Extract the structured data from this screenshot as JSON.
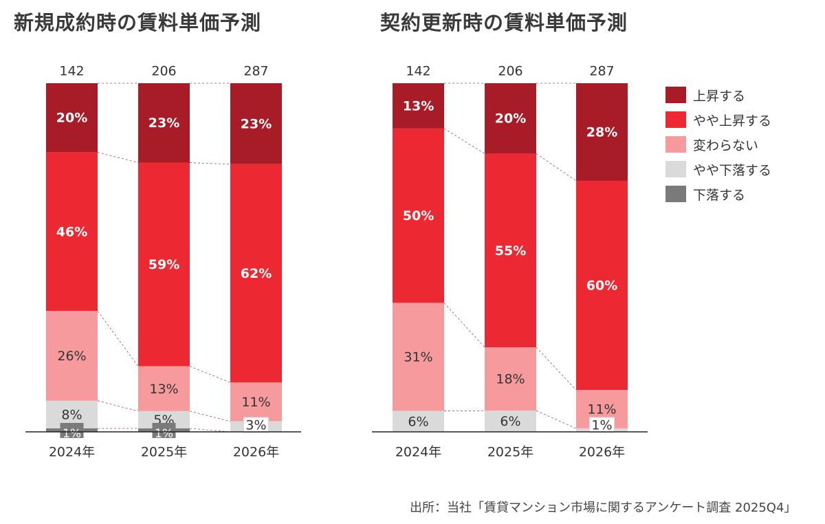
{
  "legend": [
    {
      "label": "上昇する",
      "color": "#A81C27"
    },
    {
      "label": "やや上昇する",
      "color": "#EC2832"
    },
    {
      "label": "変わらない",
      "color": "#F79A9E"
    },
    {
      "label": "やや下落する",
      "color": "#DADADA"
    },
    {
      "label": "下落する",
      "color": "#7A7A7A"
    }
  ],
  "source": "出所：当社「賃貸マンション市場に関するアンケート調査 2025Q4」",
  "chart_data": [
    {
      "type": "bar",
      "stacked": true,
      "percent": true,
      "title": "新規成約時の賃料単価予測",
      "categories": [
        "2024年",
        "2025年",
        "2026年"
      ],
      "n": [
        "142",
        "206",
        "287"
      ],
      "series": [
        {
          "name": "上昇する",
          "values": [
            20,
            23,
            23
          ],
          "labels": [
            "20%",
            "23%",
            "23%"
          ]
        },
        {
          "name": "やや上昇する",
          "values": [
            46,
            59,
            62
          ],
          "labels": [
            "46%",
            "59%",
            "62%"
          ]
        },
        {
          "name": "変わらない",
          "values": [
            26,
            13,
            11
          ],
          "labels": [
            "26%",
            "13%",
            "11%"
          ]
        },
        {
          "name": "やや下落する",
          "values": [
            8,
            5,
            3
          ],
          "labels": [
            "8%",
            "5%",
            "3%"
          ]
        },
        {
          "name": "下落する",
          "values": [
            1,
            1,
            0
          ],
          "labels": [
            "1%",
            "1%",
            ""
          ]
        }
      ]
    },
    {
      "type": "bar",
      "stacked": true,
      "percent": true,
      "title": "契約更新時の賃料単価予測",
      "categories": [
        "2024年",
        "2025年",
        "2026年"
      ],
      "n": [
        "142",
        "206",
        "287"
      ],
      "series": [
        {
          "name": "上昇する",
          "values": [
            13,
            20,
            28
          ],
          "labels": [
            "13%",
            "20%",
            "28%"
          ]
        },
        {
          "name": "やや上昇する",
          "values": [
            50,
            55,
            60
          ],
          "labels": [
            "50%",
            "55%",
            "60%"
          ]
        },
        {
          "name": "変わらない",
          "values": [
            31,
            18,
            11
          ],
          "labels": [
            "31%",
            "18%",
            "11%"
          ]
        },
        {
          "name": "やや下落する",
          "values": [
            6,
            6,
            1
          ],
          "labels": [
            "6%",
            "6%",
            "1%"
          ]
        },
        {
          "name": "下落する",
          "values": [
            0,
            0,
            0
          ],
          "labels": [
            "",
            "",
            ""
          ]
        }
      ]
    }
  ]
}
